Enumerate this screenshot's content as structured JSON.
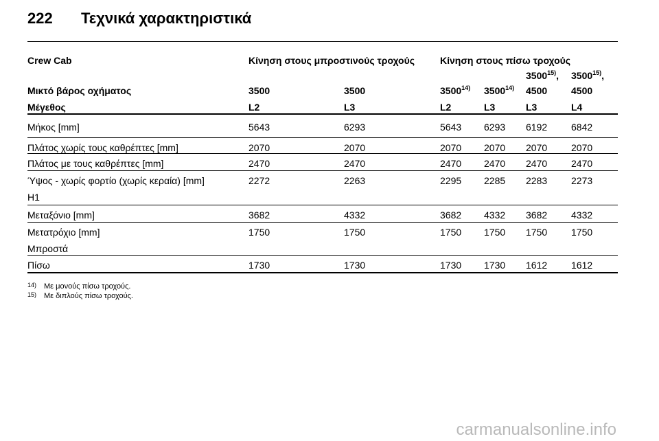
{
  "header": {
    "page_number": "222",
    "title": "Τεχνικά χαρακτηριστικά"
  },
  "table": {
    "group_headers": [
      "Crew Cab",
      "Κίνηση στους μπροστινούς τροχούς",
      "Κίνηση στους πίσω τροχούς"
    ],
    "weight_label": "Μικτό βάρος οχήματος",
    "weights": [
      {
        "value": "3500"
      },
      {
        "value": "3500"
      },
      {
        "value": "3500",
        "note": "14)"
      },
      {
        "value": "3500",
        "note": "14)"
      },
      {
        "value": "3500",
        "note": "15)",
        "separator": ",",
        "extra": "4500"
      },
      {
        "value": "3500",
        "note": "15)",
        "separator": ",",
        "extra": "4500"
      }
    ],
    "size_label": "Μέγεθος",
    "sizes": [
      "L2",
      "L3",
      "L2",
      "L3",
      "L3",
      "L4"
    ],
    "rows": [
      {
        "label": [
          "Μήκος [mm]"
        ],
        "values": [
          "5643",
          "6293",
          "5643",
          "6293",
          "6192",
          "6842"
        ]
      },
      {
        "label": [
          "Πλάτος χωρίς τους καθρέπτες [mm]"
        ],
        "values": [
          "2070",
          "2070",
          "2070",
          "2070",
          "2070",
          "2070"
        ]
      },
      {
        "label": [
          "Πλάτος με τους καθρέπτες [mm]"
        ],
        "values": [
          "2470",
          "2470",
          "2470",
          "2470",
          "2470",
          "2470"
        ]
      },
      {
        "label": [
          "Ύψος - χωρίς φορτίο (χωρίς κεραία) [mm]",
          "H1"
        ],
        "values": [
          "2272",
          "2263",
          "2295",
          "2285",
          "2283",
          "2273"
        ]
      },
      {
        "label": [
          "Μεταξόνιο [mm]"
        ],
        "values": [
          "3682",
          "4332",
          "3682",
          "4332",
          "3682",
          "4332"
        ]
      },
      {
        "label": [
          "Μετατρόχιο [mm]",
          "Μπροστά"
        ],
        "values": [
          "1750",
          "1750",
          "1750",
          "1750",
          "1750",
          "1750"
        ]
      },
      {
        "label": [
          "Πίσω"
        ],
        "values": [
          "1730",
          "1730",
          "1730",
          "1730",
          "1612",
          "1612"
        ]
      }
    ]
  },
  "footnotes": [
    {
      "mark": "14)",
      "text": "Με μονούς πίσω τροχούς."
    },
    {
      "mark": "15)",
      "text": "Με διπλούς πίσω τροχούς."
    }
  ],
  "watermark": "carmanualsonline.info"
}
